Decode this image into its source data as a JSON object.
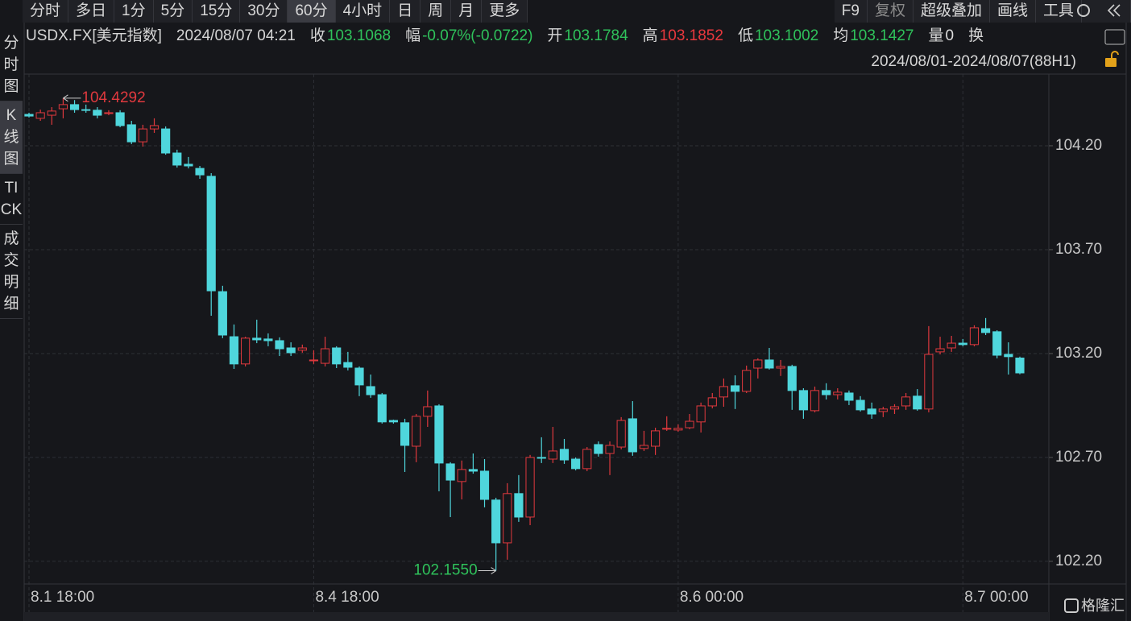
{
  "toolbar": {
    "tabs": [
      "分时",
      "多日",
      "1分",
      "5分",
      "15分",
      "30分",
      "60分",
      "4小时",
      "日",
      "周",
      "月",
      "更多"
    ],
    "selected": "60分",
    "right": [
      "F9",
      "复权",
      "超级叠加",
      "画线",
      "工具"
    ]
  },
  "sidebar": [
    "分时图",
    "K线图",
    "TICK",
    "成交明细"
  ],
  "info": {
    "symbol": "USDX.FX[美元指数]",
    "datetime": "2024/08/07 04:21",
    "fields": [
      {
        "label": "收",
        "value": "103.1068",
        "color": "#2fc25b"
      },
      {
        "label": "幅",
        "value": "-0.07%(-0.0722)",
        "color": "#2fc25b"
      },
      {
        "label": "开",
        "value": "103.1784",
        "color": "#2fc25b"
      },
      {
        "label": "高",
        "value": "103.1852",
        "color": "#e8383d"
      },
      {
        "label": "低",
        "value": "103.1002",
        "color": "#2fc25b"
      },
      {
        "label": "均",
        "value": "103.1427",
        "color": "#2fc25b"
      },
      {
        "label": "量",
        "value": "0",
        "color": "#dddddd"
      },
      {
        "label": "换"
      }
    ],
    "range": "2024/08/01-2024/08/07(88H1)"
  },
  "watermark": "格隆汇",
  "chart_data": {
    "type": "candlestick",
    "categories": [
      "8.1 18:00",
      null,
      null,
      null,
      null,
      null,
      null,
      null,
      null,
      null,
      null,
      null,
      null,
      null,
      null,
      null,
      null,
      null,
      null,
      null,
      null,
      null,
      null,
      null,
      null,
      "8.4 18:00",
      null,
      null,
      null,
      null,
      null,
      null,
      null,
      null,
      null,
      null,
      null,
      null,
      null,
      null,
      null,
      null,
      null,
      null,
      null,
      null,
      null,
      null,
      null,
      null,
      null,
      null,
      null,
      null,
      null,
      null,
      null,
      "8.6 00:00",
      null,
      null,
      null,
      null,
      null,
      null,
      null,
      null,
      null,
      null,
      null,
      null,
      null,
      null,
      null,
      null,
      null,
      null,
      null,
      null,
      null,
      null,
      null,
      null,
      "8.7 00:00",
      null,
      null,
      null,
      null,
      null
    ],
    "open": [
      104.351,
      104.332,
      104.347,
      104.378,
      104.398,
      104.374,
      104.371,
      104.355,
      104.359,
      104.301,
      104.219,
      104.281,
      104.281,
      104.165,
      104.111,
      104.091,
      104.053,
      103.498,
      103.281,
      103.15,
      103.274,
      103.27,
      103.262,
      103.227,
      103.216,
      103.165,
      103.153,
      103.227,
      103.157,
      103.13,
      103.041,
      103.002,
      102.878,
      102.867,
      102.754,
      102.898,
      102.948,
      102.669,
      102.584,
      102.642,
      102.634,
      102.495,
      102.289,
      102.526,
      102.413,
      102.7,
      102.692,
      102.739,
      102.692,
      102.646,
      102.762,
      102.719,
      102.75,
      102.886,
      102.743,
      102.754,
      102.836,
      102.832,
      102.843,
      102.871,
      102.948,
      102.991,
      103.045,
      103.018,
      103.13,
      103.169,
      103.13,
      103.138,
      103.022,
      102.925,
      103.022,
      103.002,
      103.01,
      102.975,
      102.933,
      102.921,
      102.933,
      102.948,
      102.995,
      102.933,
      103.208,
      103.227,
      103.25,
      103.243,
      103.32,
      103.305,
      103.196,
      103.1784
    ],
    "high": [
      104.359,
      104.374,
      104.386,
      104.4292,
      104.42,
      104.398,
      104.386,
      104.371,
      104.371,
      104.32,
      104.301,
      104.332,
      104.293,
      104.181,
      104.146,
      104.103,
      104.068,
      103.526,
      103.34,
      103.281,
      103.363,
      103.297,
      103.278,
      103.254,
      103.243,
      103.216,
      103.281,
      103.235,
      103.208,
      103.138,
      103.099,
      103.01,
      102.882,
      102.886,
      102.909,
      103.022,
      102.956,
      102.677,
      102.685,
      102.719,
      102.692,
      102.506,
      102.576,
      102.615,
      102.712,
      102.797,
      102.847,
      102.789,
      102.7,
      102.75,
      102.777,
      102.777,
      102.894,
      102.971,
      102.828,
      102.843,
      102.898,
      102.859,
      102.909,
      102.964,
      103.01,
      103.08,
      103.095,
      103.142,
      103.177,
      103.227,
      103.169,
      103.146,
      103.033,
      103.041,
      103.057,
      103.033,
      103.022,
      102.995,
      102.964,
      102.944,
      102.956,
      103.01,
      103.029,
      103.332,
      103.281,
      103.285,
      103.27,
      103.336,
      103.371,
      103.312,
      103.254,
      103.1852
    ],
    "low": [
      104.336,
      104.32,
      104.301,
      104.332,
      104.359,
      104.359,
      104.332,
      104.347,
      104.289,
      104.208,
      104.196,
      104.262,
      104.157,
      104.095,
      104.091,
      104.041,
      103.382,
      103.274,
      103.126,
      103.138,
      103.25,
      103.235,
      103.188,
      103.188,
      103.204,
      103.15,
      103.138,
      103.13,
      103.119,
      102.995,
      102.987,
      102.863,
      102.863,
      102.63,
      102.677,
      102.847,
      102.537,
      102.413,
      102.498,
      102.622,
      102.46,
      102.155,
      102.208,
      102.39,
      102.374,
      102.673,
      102.673,
      102.669,
      102.638,
      102.634,
      102.704,
      102.615,
      102.739,
      102.708,
      102.731,
      102.712,
      102.828,
      102.824,
      102.836,
      102.82,
      102.936,
      102.944,
      102.933,
      103.01,
      103.08,
      103.123,
      103.092,
      102.929,
      102.886,
      102.917,
      102.979,
      102.979,
      102.952,
      102.921,
      102.886,
      102.894,
      102.909,
      102.929,
      102.925,
      102.917,
      103.196,
      103.208,
      103.235,
      103.235,
      103.289,
      103.177,
      103.099,
      103.1002
    ],
    "close": [
      104.343,
      104.359,
      104.367,
      104.398,
      104.374,
      104.371,
      104.347,
      104.359,
      104.297,
      104.219,
      104.281,
      104.297,
      104.165,
      104.107,
      104.103,
      104.06,
      103.502,
      103.289,
      103.15,
      103.274,
      103.266,
      103.262,
      103.223,
      103.204,
      103.227,
      103.169,
      103.223,
      103.15,
      103.134,
      103.049,
      103.002,
      102.871,
      102.871,
      102.758,
      102.898,
      102.944,
      102.673,
      102.591,
      102.642,
      102.634,
      102.498,
      102.289,
      102.526,
      102.413,
      102.7,
      102.696,
      102.731,
      102.688,
      102.646,
      102.739,
      102.719,
      102.758,
      102.878,
      102.727,
      102.758,
      102.828,
      102.84,
      102.84,
      102.874,
      102.948,
      102.987,
      103.041,
      103.018,
      103.119,
      103.169,
      103.13,
      103.138,
      103.022,
      102.929,
      103.022,
      103.002,
      103.014,
      102.975,
      102.929,
      102.909,
      102.933,
      102.944,
      102.991,
      102.933,
      103.196,
      103.223,
      103.25,
      103.243,
      103.324,
      103.301,
      103.192,
      103.185,
      103.1068
    ],
    "up_color": "#e0393e",
    "down_color": "#4fd6dc",
    "high_marker": 104.4292,
    "low_marker": {
      "value": 102.155,
      "label": "102.1550"
    },
    "ylim": [
      102.095,
      104.541
    ],
    "yticks": [
      {
        "value": 104.2,
        "label": "104.20"
      },
      {
        "value": 103.7,
        "label": "103.70"
      },
      {
        "value": 103.2,
        "label": "103.20"
      },
      {
        "value": 102.7,
        "label": "102.70"
      },
      {
        "value": 102.2,
        "label": "102.20"
      }
    ],
    "grid": true
  }
}
